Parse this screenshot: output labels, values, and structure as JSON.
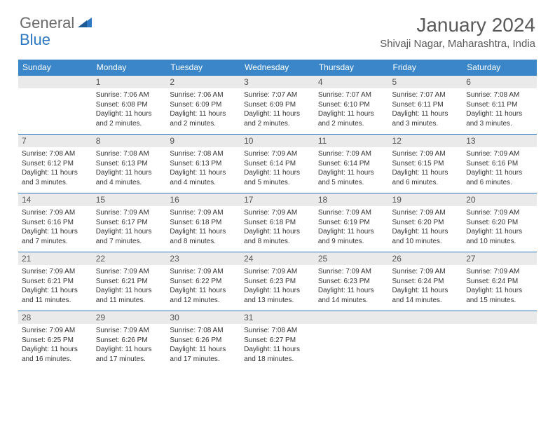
{
  "logo": {
    "general": "General",
    "blue": "Blue"
  },
  "title": "January 2024",
  "location": "Shivaji Nagar, Maharashtra, India",
  "colors": {
    "header_bg": "#3a86c8",
    "header_text": "#ffffff",
    "daynum_bg": "#eaeaea",
    "accent": "#2d78c3",
    "border": "#2d78c3",
    "logo_gray": "#6a6a6a",
    "text": "#333333",
    "title_color": "#5a5a5a"
  },
  "day_headers": [
    "Sunday",
    "Monday",
    "Tuesday",
    "Wednesday",
    "Thursday",
    "Friday",
    "Saturday"
  ],
  "weeks": [
    [
      {
        "n": "",
        "sr": "",
        "ss": "",
        "dl": ""
      },
      {
        "n": "1",
        "sr": "Sunrise: 7:06 AM",
        "ss": "Sunset: 6:08 PM",
        "dl": "Daylight: 11 hours and 2 minutes."
      },
      {
        "n": "2",
        "sr": "Sunrise: 7:06 AM",
        "ss": "Sunset: 6:09 PM",
        "dl": "Daylight: 11 hours and 2 minutes."
      },
      {
        "n": "3",
        "sr": "Sunrise: 7:07 AM",
        "ss": "Sunset: 6:09 PM",
        "dl": "Daylight: 11 hours and 2 minutes."
      },
      {
        "n": "4",
        "sr": "Sunrise: 7:07 AM",
        "ss": "Sunset: 6:10 PM",
        "dl": "Daylight: 11 hours and 2 minutes."
      },
      {
        "n": "5",
        "sr": "Sunrise: 7:07 AM",
        "ss": "Sunset: 6:11 PM",
        "dl": "Daylight: 11 hours and 3 minutes."
      },
      {
        "n": "6",
        "sr": "Sunrise: 7:08 AM",
        "ss": "Sunset: 6:11 PM",
        "dl": "Daylight: 11 hours and 3 minutes."
      }
    ],
    [
      {
        "n": "7",
        "sr": "Sunrise: 7:08 AM",
        "ss": "Sunset: 6:12 PM",
        "dl": "Daylight: 11 hours and 3 minutes."
      },
      {
        "n": "8",
        "sr": "Sunrise: 7:08 AM",
        "ss": "Sunset: 6:13 PM",
        "dl": "Daylight: 11 hours and 4 minutes."
      },
      {
        "n": "9",
        "sr": "Sunrise: 7:08 AM",
        "ss": "Sunset: 6:13 PM",
        "dl": "Daylight: 11 hours and 4 minutes."
      },
      {
        "n": "10",
        "sr": "Sunrise: 7:09 AM",
        "ss": "Sunset: 6:14 PM",
        "dl": "Daylight: 11 hours and 5 minutes."
      },
      {
        "n": "11",
        "sr": "Sunrise: 7:09 AM",
        "ss": "Sunset: 6:14 PM",
        "dl": "Daylight: 11 hours and 5 minutes."
      },
      {
        "n": "12",
        "sr": "Sunrise: 7:09 AM",
        "ss": "Sunset: 6:15 PM",
        "dl": "Daylight: 11 hours and 6 minutes."
      },
      {
        "n": "13",
        "sr": "Sunrise: 7:09 AM",
        "ss": "Sunset: 6:16 PM",
        "dl": "Daylight: 11 hours and 6 minutes."
      }
    ],
    [
      {
        "n": "14",
        "sr": "Sunrise: 7:09 AM",
        "ss": "Sunset: 6:16 PM",
        "dl": "Daylight: 11 hours and 7 minutes."
      },
      {
        "n": "15",
        "sr": "Sunrise: 7:09 AM",
        "ss": "Sunset: 6:17 PM",
        "dl": "Daylight: 11 hours and 7 minutes."
      },
      {
        "n": "16",
        "sr": "Sunrise: 7:09 AM",
        "ss": "Sunset: 6:18 PM",
        "dl": "Daylight: 11 hours and 8 minutes."
      },
      {
        "n": "17",
        "sr": "Sunrise: 7:09 AM",
        "ss": "Sunset: 6:18 PM",
        "dl": "Daylight: 11 hours and 8 minutes."
      },
      {
        "n": "18",
        "sr": "Sunrise: 7:09 AM",
        "ss": "Sunset: 6:19 PM",
        "dl": "Daylight: 11 hours and 9 minutes."
      },
      {
        "n": "19",
        "sr": "Sunrise: 7:09 AM",
        "ss": "Sunset: 6:20 PM",
        "dl": "Daylight: 11 hours and 10 minutes."
      },
      {
        "n": "20",
        "sr": "Sunrise: 7:09 AM",
        "ss": "Sunset: 6:20 PM",
        "dl": "Daylight: 11 hours and 10 minutes."
      }
    ],
    [
      {
        "n": "21",
        "sr": "Sunrise: 7:09 AM",
        "ss": "Sunset: 6:21 PM",
        "dl": "Daylight: 11 hours and 11 minutes."
      },
      {
        "n": "22",
        "sr": "Sunrise: 7:09 AM",
        "ss": "Sunset: 6:21 PM",
        "dl": "Daylight: 11 hours and 11 minutes."
      },
      {
        "n": "23",
        "sr": "Sunrise: 7:09 AM",
        "ss": "Sunset: 6:22 PM",
        "dl": "Daylight: 11 hours and 12 minutes."
      },
      {
        "n": "24",
        "sr": "Sunrise: 7:09 AM",
        "ss": "Sunset: 6:23 PM",
        "dl": "Daylight: 11 hours and 13 minutes."
      },
      {
        "n": "25",
        "sr": "Sunrise: 7:09 AM",
        "ss": "Sunset: 6:23 PM",
        "dl": "Daylight: 11 hours and 14 minutes."
      },
      {
        "n": "26",
        "sr": "Sunrise: 7:09 AM",
        "ss": "Sunset: 6:24 PM",
        "dl": "Daylight: 11 hours and 14 minutes."
      },
      {
        "n": "27",
        "sr": "Sunrise: 7:09 AM",
        "ss": "Sunset: 6:24 PM",
        "dl": "Daylight: 11 hours and 15 minutes."
      }
    ],
    [
      {
        "n": "28",
        "sr": "Sunrise: 7:09 AM",
        "ss": "Sunset: 6:25 PM",
        "dl": "Daylight: 11 hours and 16 minutes."
      },
      {
        "n": "29",
        "sr": "Sunrise: 7:09 AM",
        "ss": "Sunset: 6:26 PM",
        "dl": "Daylight: 11 hours and 17 minutes."
      },
      {
        "n": "30",
        "sr": "Sunrise: 7:08 AM",
        "ss": "Sunset: 6:26 PM",
        "dl": "Daylight: 11 hours and 17 minutes."
      },
      {
        "n": "31",
        "sr": "Sunrise: 7:08 AM",
        "ss": "Sunset: 6:27 PM",
        "dl": "Daylight: 11 hours and 18 minutes."
      },
      {
        "n": "",
        "sr": "",
        "ss": "",
        "dl": ""
      },
      {
        "n": "",
        "sr": "",
        "ss": "",
        "dl": ""
      },
      {
        "n": "",
        "sr": "",
        "ss": "",
        "dl": ""
      }
    ]
  ]
}
